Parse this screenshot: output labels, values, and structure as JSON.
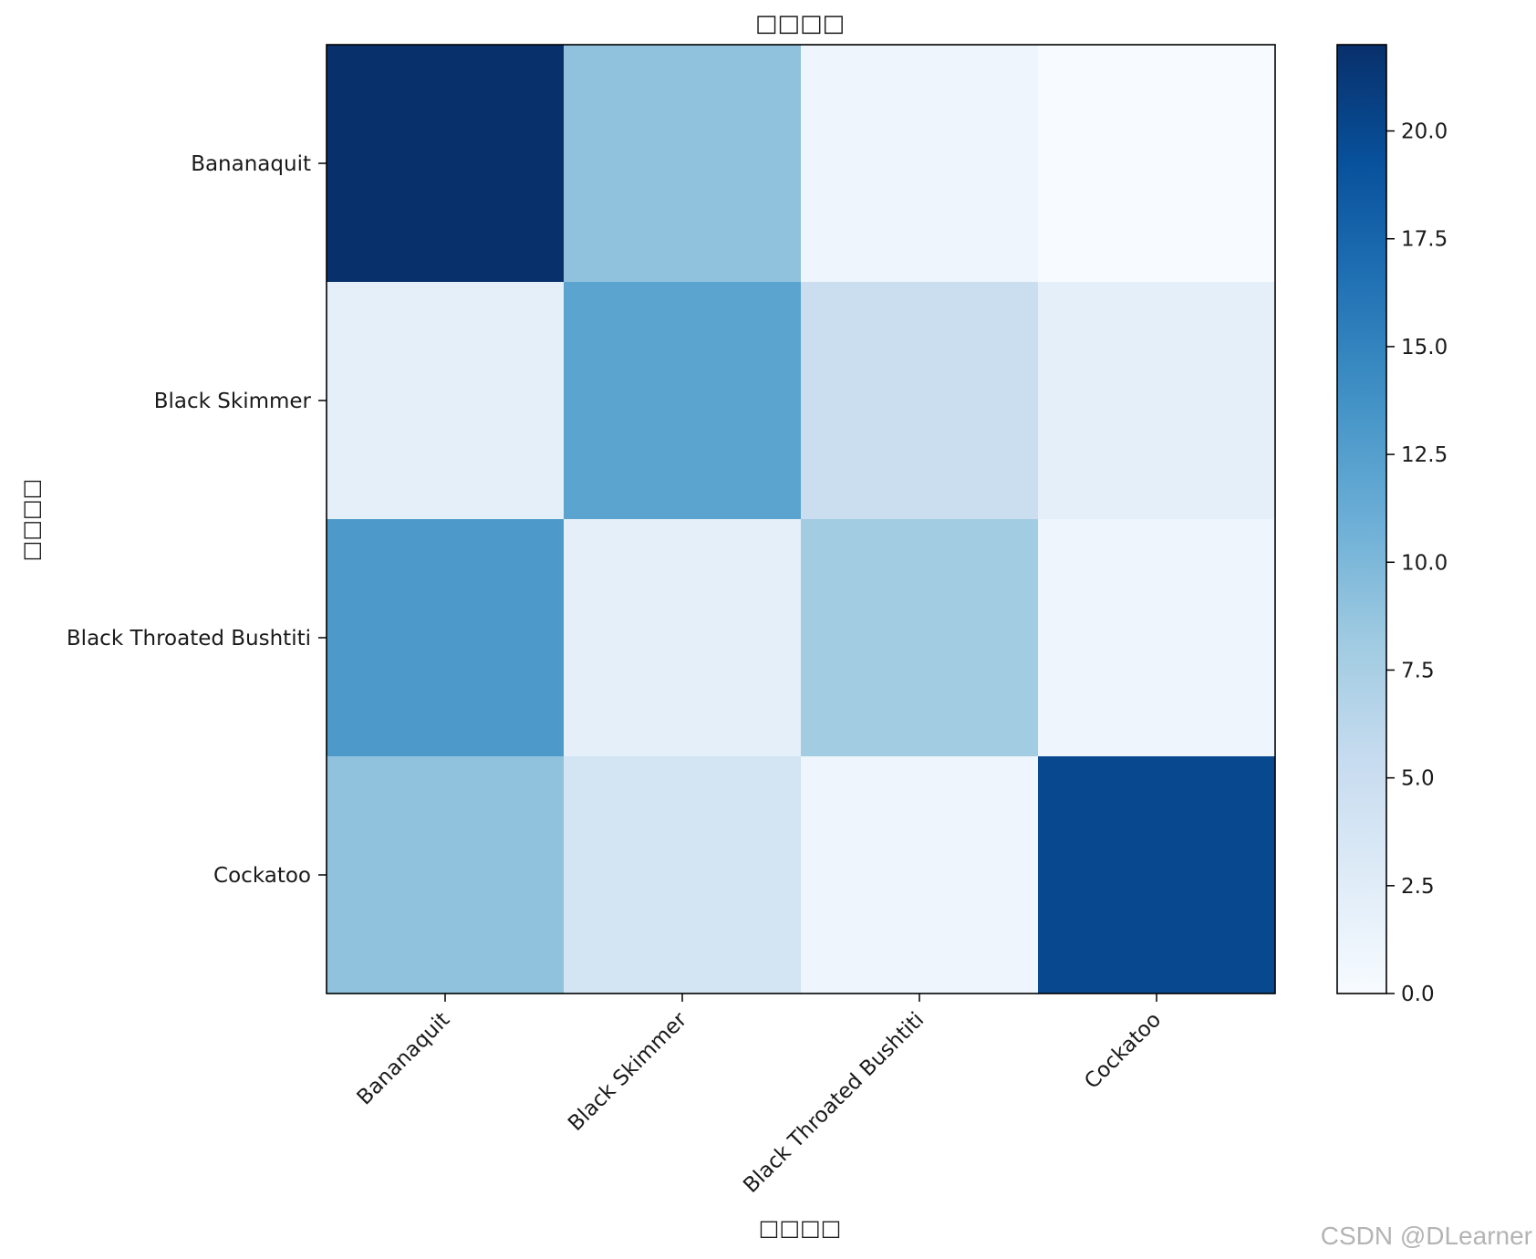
{
  "chart_data": {
    "type": "heatmap",
    "title": "□□□□",
    "xlabel": "□□□□",
    "ylabel": "□□□□",
    "x_categories": [
      "Bananaquit",
      "Black Skimmer",
      "Black Throated Bushtiti",
      "Cockatoo"
    ],
    "y_categories": [
      "Bananaquit",
      "Black Skimmer",
      "Black Throated Bushtiti",
      "Cockatoo"
    ],
    "matrix": [
      [
        22,
        9,
        1,
        0
      ],
      [
        2,
        12,
        5,
        2
      ],
      [
        13,
        2,
        8,
        1
      ],
      [
        9,
        4,
        1,
        20
      ]
    ],
    "colormap": "Blues",
    "colorbar": {
      "range": [
        0,
        22
      ],
      "ticks": [
        0.0,
        2.5,
        5.0,
        7.5,
        10.0,
        12.5,
        15.0,
        17.5,
        20.0
      ],
      "tick_labels": [
        "0.0",
        "2.5",
        "5.0",
        "7.5",
        "10.0",
        "12.5",
        "15.0",
        "17.5",
        "20.0"
      ]
    },
    "x_tick_rotation_deg": 45,
    "grid": false
  },
  "watermark": "CSDN @DLearner"
}
